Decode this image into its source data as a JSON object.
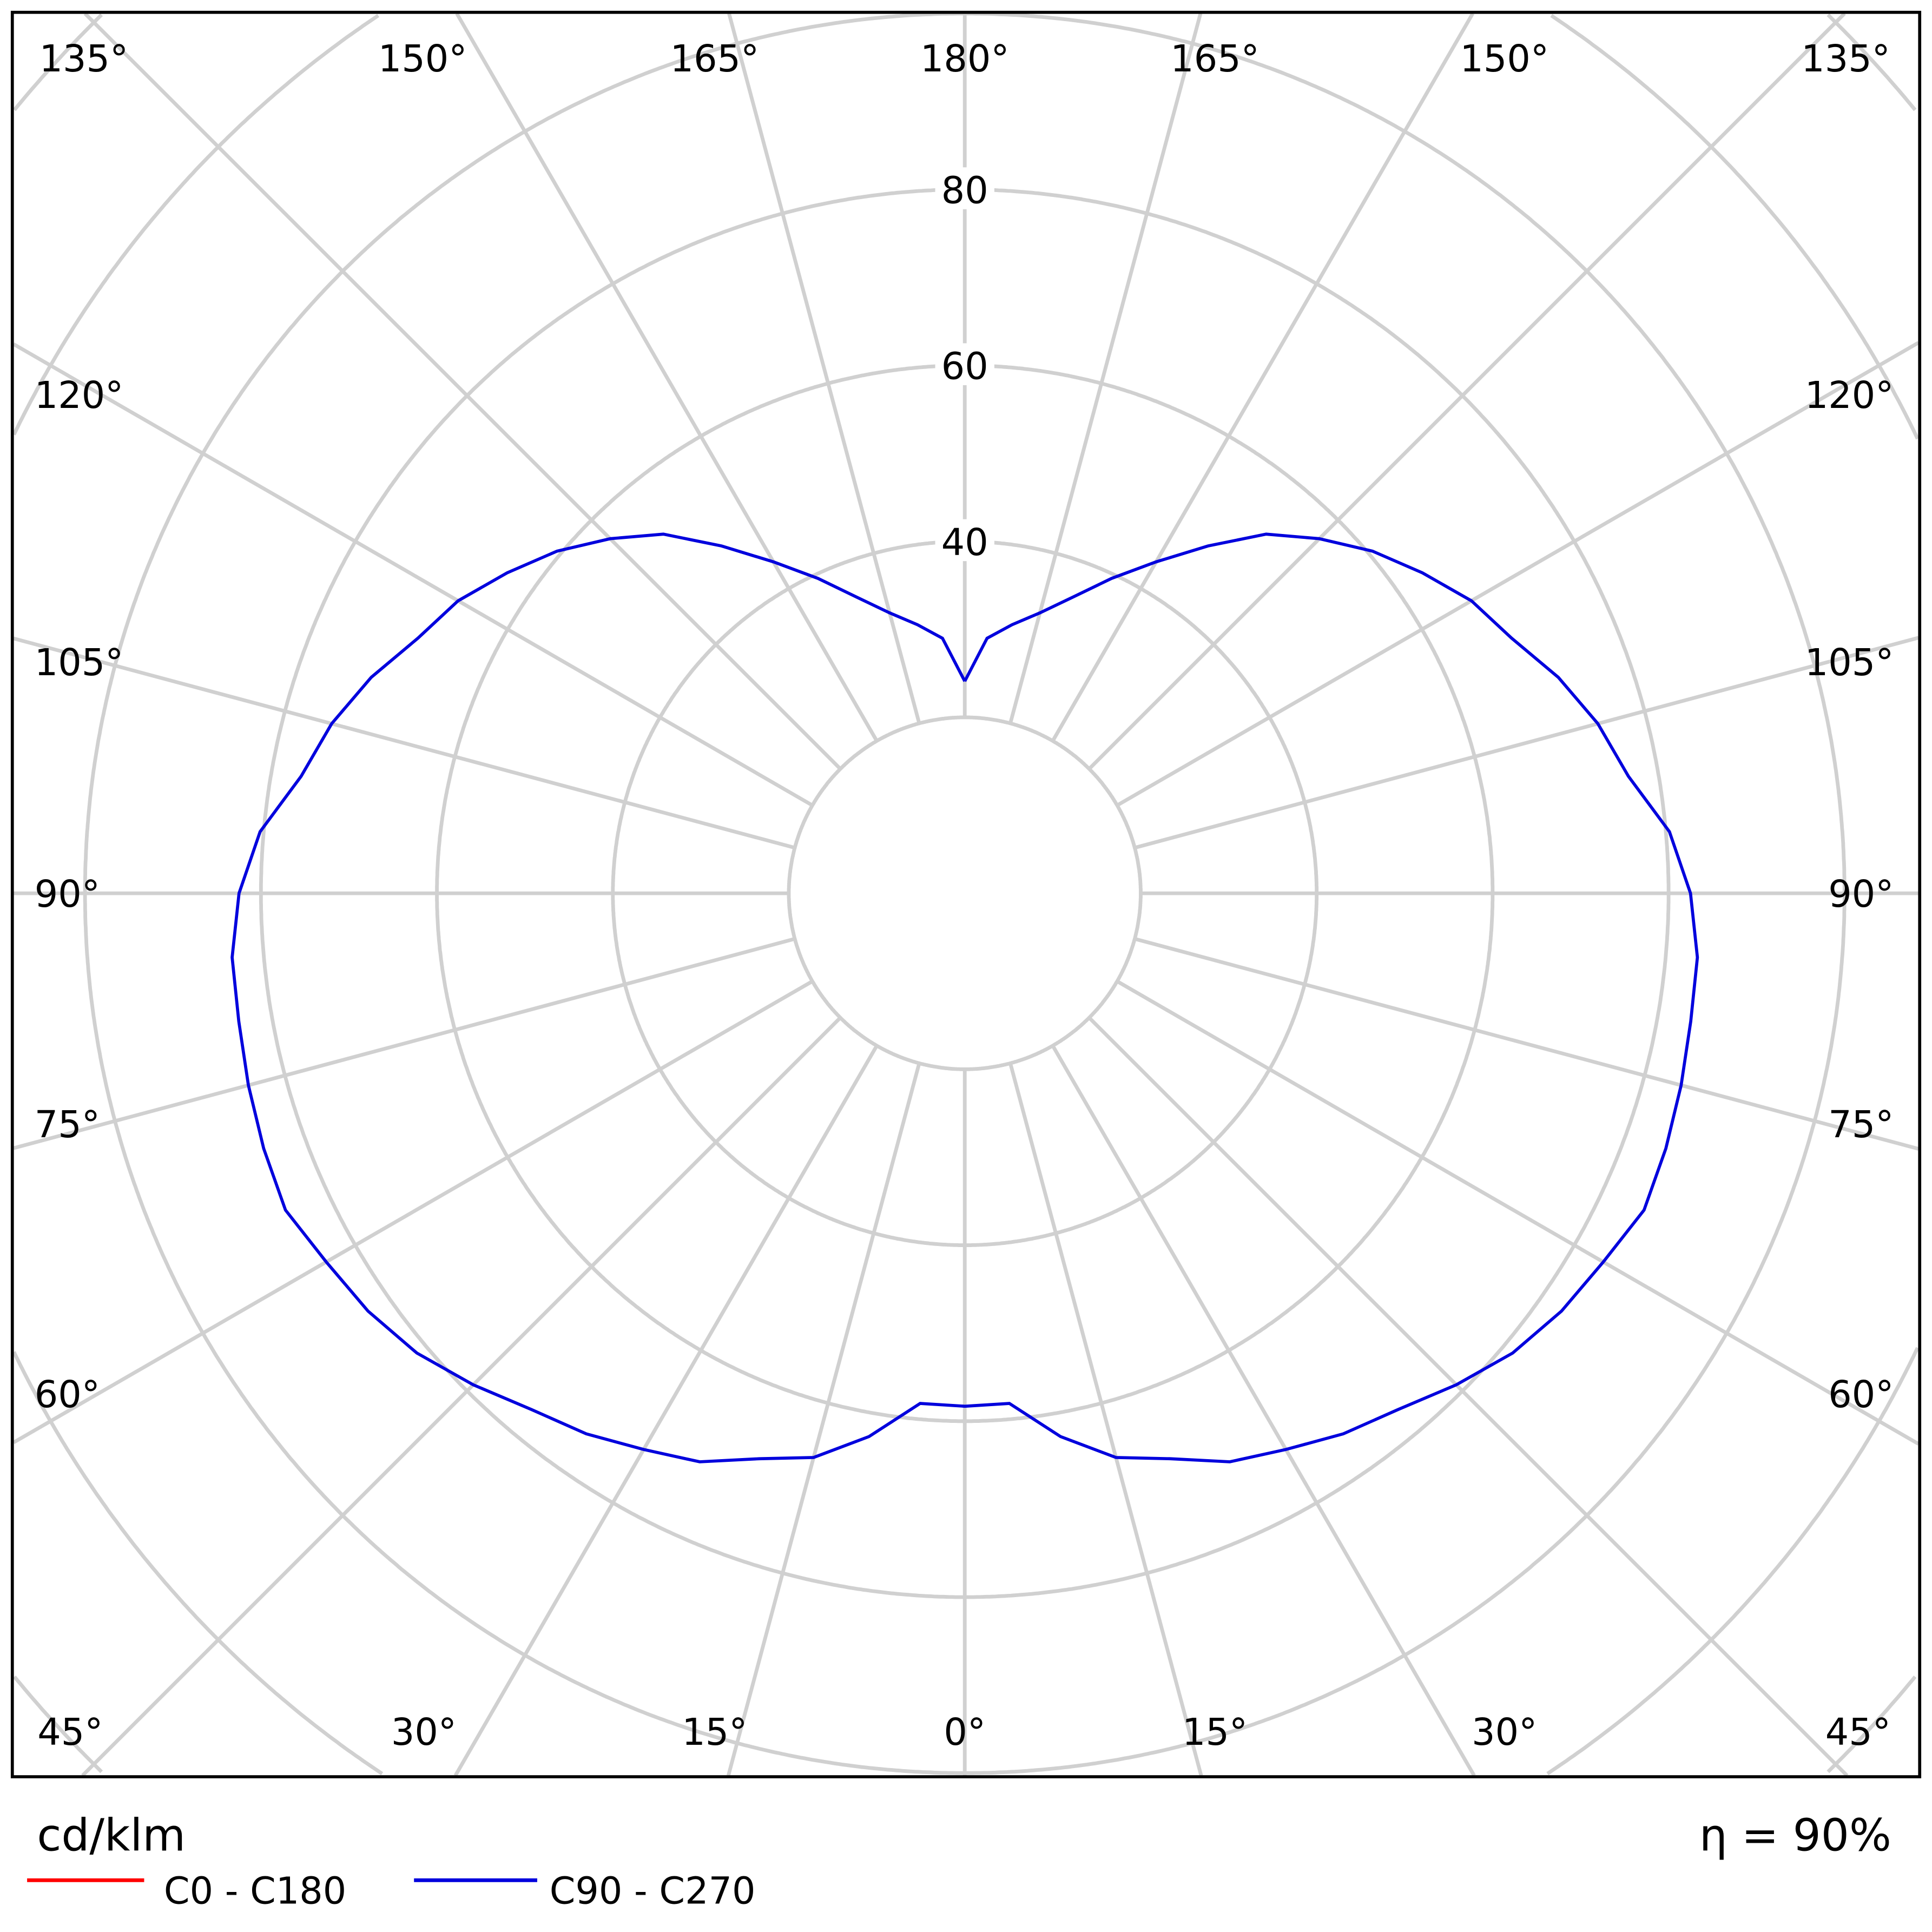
{
  "chart_data": {
    "type": "polar",
    "unit_label": "cd/klm",
    "efficiency_label": "η = 90%",
    "radial_ticks": [
      40,
      60,
      80
    ],
    "radial_rings": [
      20,
      40,
      60,
      80,
      100,
      120,
      140,
      160
    ],
    "angle_labels": {
      "top": [
        "135°",
        "150°",
        "165°",
        "180°",
        "165°",
        "150°",
        "135°"
      ],
      "left": [
        "120°",
        "105°",
        "90°",
        "75°",
        "60°"
      ],
      "right": [
        "120°",
        "105°",
        "90°",
        "75°",
        "60°"
      ],
      "bottom": [
        "45°",
        "30°",
        "15°",
        "0°",
        "15°",
        "30°",
        "45°"
      ]
    },
    "grid": true,
    "legend_placement": "bottom-left",
    "series": [
      {
        "name": "C0 - C180",
        "color": "#ff0000"
      },
      {
        "name": "C90 - C270",
        "color": "#0000dd",
        "gamma": [
          0,
          5,
          10,
          15,
          20,
          25,
          30,
          35,
          40,
          45,
          50,
          55,
          60,
          65,
          70,
          75,
          80,
          85,
          90,
          95,
          100,
          105,
          110,
          115,
          120,
          125,
          130,
          135,
          140,
          145,
          150,
          155,
          160,
          165,
          170,
          175,
          180
        ],
        "values": [
          58.3,
          58.2,
          62.7,
          66.4,
          68.4,
          71.3,
          73.0,
          75.0,
          76.6,
          79.0,
          81.3,
          82.8,
          83.8,
          85.2,
          84.8,
          84.3,
          83.8,
          83.6,
          82.5,
          80.4,
          76.6,
          74.5,
          71.8,
          68.6,
          66.5,
          63.5,
          60.5,
          57.0,
          53.3,
          48.2,
          43.5,
          39.5,
          35.8,
          33.0,
          31.0,
          29.1,
          24.1
        ]
      }
    ]
  }
}
